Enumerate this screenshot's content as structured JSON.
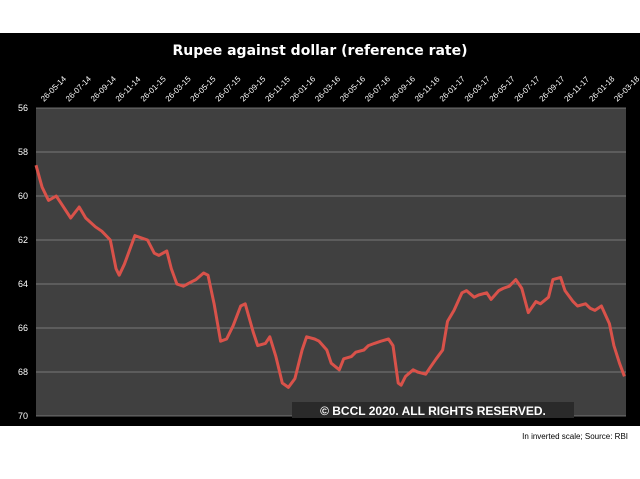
{
  "chart_data": {
    "type": "line",
    "title": "Rupee against dollar (reference rate)",
    "y_inverted": true,
    "ylim": [
      56,
      70
    ],
    "yticks": [
      56,
      58,
      60,
      62,
      64,
      66,
      68,
      70
    ],
    "x_tick_labels": [
      "26-05-14",
      "26-07-14",
      "26-09-14",
      "26-11-14",
      "26-01-15",
      "26-03-15",
      "26-05-15",
      "26-07-15",
      "26-09-15",
      "26-11-15",
      "26-01-16",
      "26-03-16",
      "26-05-16",
      "26-07-16",
      "26-09-16",
      "26-11-16",
      "26-01-17",
      "26-03-17",
      "26-05-17",
      "26-07-17",
      "26-09-17",
      "26-11-17",
      "26-01-18",
      "26-03-18"
    ],
    "series": [
      {
        "color": "#d9524a",
        "x": [
          "2014-05-26",
          "2014-06-10",
          "2014-06-26",
          "2014-07-15",
          "2014-07-26",
          "2014-08-20",
          "2014-09-10",
          "2014-09-26",
          "2014-10-20",
          "2014-11-05",
          "2014-11-26",
          "2014-12-10",
          "2014-12-18",
          "2014-12-31",
          "2015-01-26",
          "2015-02-10",
          "2015-02-26",
          "2015-03-15",
          "2015-03-26",
          "2015-04-15",
          "2015-04-26",
          "2015-05-10",
          "2015-05-26",
          "2015-06-15",
          "2015-06-26",
          "2015-07-15",
          "2015-07-26",
          "2015-08-10",
          "2015-08-26",
          "2015-09-10",
          "2015-09-26",
          "2015-10-15",
          "2015-10-26",
          "2015-11-15",
          "2015-11-26",
          "2015-12-15",
          "2015-12-26",
          "2016-01-10",
          "2016-01-26",
          "2016-02-10",
          "2016-02-26",
          "2016-03-15",
          "2016-03-26",
          "2016-04-15",
          "2016-04-26",
          "2016-05-15",
          "2016-05-26",
          "2016-06-15",
          "2016-06-26",
          "2016-07-15",
          "2016-07-26",
          "2016-08-15",
          "2016-08-26",
          "2016-09-10",
          "2016-09-26",
          "2016-10-15",
          "2016-10-26",
          "2016-11-08",
          "2016-11-15",
          "2016-11-26",
          "2016-12-15",
          "2016-12-26",
          "2017-01-15",
          "2017-01-26",
          "2017-02-10",
          "2017-02-26",
          "2017-03-10",
          "2017-03-26",
          "2017-04-15",
          "2017-04-26",
          "2017-05-15",
          "2017-05-26",
          "2017-06-15",
          "2017-06-26",
          "2017-07-15",
          "2017-07-26",
          "2017-08-10",
          "2017-08-26",
          "2017-09-10",
          "2017-09-26",
          "2017-10-15",
          "2017-10-26",
          "2017-11-15",
          "2017-11-26",
          "2017-12-15",
          "2017-12-26",
          "2018-01-15",
          "2018-01-26",
          "2018-02-15",
          "2018-02-26",
          "2018-03-10",
          "2018-03-26",
          "2018-04-15",
          "2018-04-26",
          "2018-05-10",
          "2018-05-22"
        ],
        "values": [
          58.6,
          59.6,
          60.2,
          60.0,
          60.3,
          61.0,
          60.5,
          61.0,
          61.4,
          61.6,
          62.0,
          63.3,
          63.6,
          63.1,
          61.8,
          61.9,
          62.0,
          62.6,
          62.7,
          62.5,
          63.3,
          64.0,
          64.1,
          63.9,
          63.8,
          63.5,
          63.6,
          64.9,
          66.6,
          66.5,
          65.9,
          65.0,
          64.9,
          66.2,
          66.8,
          66.7,
          66.4,
          67.3,
          68.5,
          68.7,
          68.3,
          67.0,
          66.4,
          66.5,
          66.6,
          67.0,
          67.6,
          67.9,
          67.4,
          67.3,
          67.1,
          67.0,
          66.8,
          66.7,
          66.6,
          66.5,
          66.8,
          68.5,
          68.6,
          68.2,
          67.9,
          68.0,
          68.1,
          67.8,
          67.4,
          67.0,
          65.7,
          65.2,
          64.4,
          64.3,
          64.6,
          64.5,
          64.4,
          64.7,
          64.3,
          64.2,
          64.1,
          63.8,
          64.2,
          65.3,
          64.8,
          64.9,
          64.6,
          63.8,
          63.7,
          64.3,
          64.8,
          65.0,
          64.9,
          65.1,
          65.2,
          65.0,
          65.8,
          66.8,
          67.6,
          68.2
        ]
      }
    ],
    "watermark": "© BCCL 2020. ALL RIGHTS RESERVED.",
    "footnote": "In inverted scale; Source: RBI",
    "colors": {
      "panel_bg": "#000000",
      "plot_bg": "#404040",
      "grid": "#8c8c8c",
      "line": "#d9524a"
    }
  }
}
